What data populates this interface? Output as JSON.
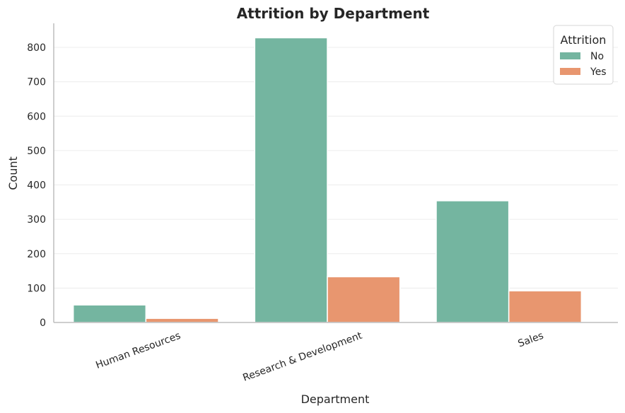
{
  "chart_data": {
    "type": "bar",
    "title": "Attrition by Department",
    "xlabel": "Department",
    "ylabel": "Count",
    "categories": [
      "Human Resources",
      "Research & Development",
      "Sales"
    ],
    "series": [
      {
        "name": "No",
        "values": [
          51,
          828,
          354
        ],
        "color": "#74b5a0"
      },
      {
        "name": "Yes",
        "values": [
          12,
          133,
          92
        ],
        "color": "#e8966f"
      }
    ],
    "ylim": [
      0,
      870
    ],
    "yticks": [
      0,
      100,
      200,
      300,
      400,
      500,
      600,
      700,
      800
    ],
    "grid": "horizontal",
    "legend": {
      "title": "Attrition",
      "placement": "top-right"
    }
  }
}
